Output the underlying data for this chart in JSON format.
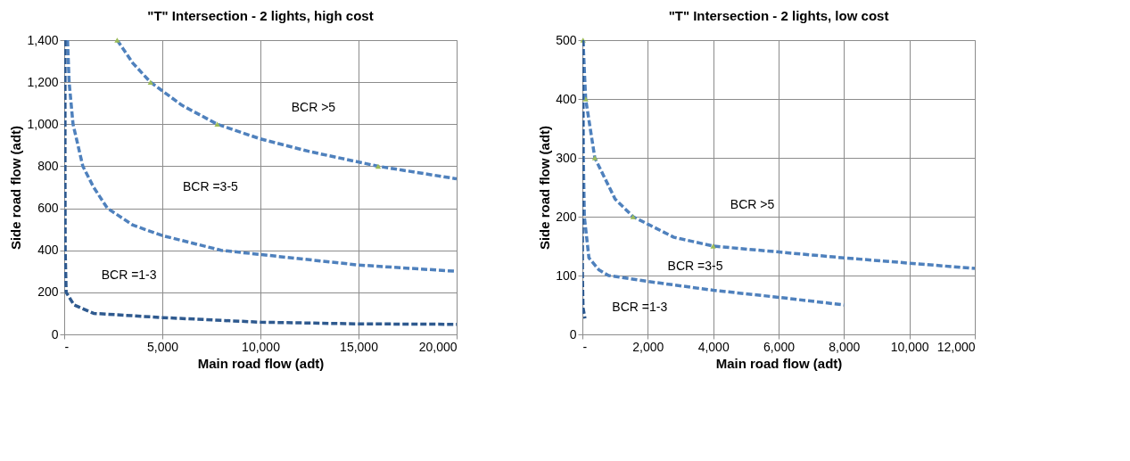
{
  "chart_data": [
    {
      "type": "line",
      "title": "\"T\" Intersection - 2 lights, high cost",
      "xlabel": "Main road flow (adt)",
      "ylabel": "Side road flow (adt)",
      "xlim": [
        0,
        20000
      ],
      "ylim": [
        0,
        1400
      ],
      "xticks": [
        {
          "value": 0,
          "label": "-"
        },
        {
          "value": 5000,
          "label": "5,000"
        },
        {
          "value": 10000,
          "label": "10,000"
        },
        {
          "value": 15000,
          "label": "15,000"
        },
        {
          "value": 20000,
          "label": "20,000"
        }
      ],
      "yticks": [
        0,
        200,
        400,
        600,
        800,
        {
          "value": 1000,
          "label": "1,000"
        },
        {
          "value": 1200,
          "label": "1,200"
        },
        {
          "value": 1400,
          "label": "1,400"
        }
      ],
      "grid": true,
      "line_style": "dashed",
      "series": [
        {
          "color": "#4f81bd",
          "marker": "none",
          "x": [
            2700,
            3500,
            4400,
            6000,
            7800,
            10000,
            12500,
            16000,
            20000
          ],
          "values": [
            1400,
            1290,
            1200,
            1090,
            1000,
            930,
            870,
            800,
            740
          ]
        },
        {
          "type": "scatter",
          "color": "#9bbb59",
          "marker": "triangle",
          "x": [
            2700,
            4400,
            7800,
            16000
          ],
          "values": [
            1400,
            1200,
            1000,
            800
          ]
        },
        {
          "color": "#4f81bd",
          "marker": "none",
          "x": [
            170,
            250,
            450,
            950,
            1500,
            2200,
            3500,
            5000,
            8000,
            10000,
            15000,
            20000
          ],
          "values": [
            1400,
            1200,
            1000,
            800,
            700,
            600,
            520,
            470,
            400,
            380,
            330,
            300
          ]
        },
        {
          "color": "#2f5a8f",
          "marker": "none",
          "x": [
            40,
            40,
            50,
            100,
            500,
            1500,
            5000,
            10000,
            15000,
            20000
          ],
          "values": [
            1400,
            800,
            400,
            200,
            140,
            100,
            80,
            58,
            50,
            48
          ]
        }
      ],
      "annotations": [
        "BCR >5",
        "BCR =3-5",
        "BCR =1-3"
      ]
    },
    {
      "type": "line",
      "title": "\"T\" Intersection - 2 lights, low cost",
      "xlabel": "Main road flow (adt)",
      "ylabel": "Side road flow (adt)",
      "xlim": [
        0,
        12000
      ],
      "ylim": [
        0,
        500
      ],
      "xticks": [
        {
          "value": 0,
          "label": "-"
        },
        {
          "value": 2000,
          "label": "2,000"
        },
        {
          "value": 4000,
          "label": "4,000"
        },
        {
          "value": 6000,
          "label": "6,000"
        },
        {
          "value": 8000,
          "label": "8,000"
        },
        {
          "value": 10000,
          "label": "10,000"
        },
        {
          "value": 12000,
          "label": "12,000"
        }
      ],
      "yticks": [
        0,
        100,
        200,
        300,
        400,
        500
      ],
      "grid": true,
      "line_style": "dashed",
      "series": [
        {
          "color": "#4f81bd",
          "marker": "none",
          "x": [
            20,
            100,
            380,
            1000,
            1550,
            2800,
            4000,
            6000,
            8000,
            10000,
            12000
          ],
          "values": [
            500,
            400,
            300,
            230,
            200,
            165,
            150,
            140,
            130,
            121,
            112
          ]
        },
        {
          "type": "scatter",
          "color": "#9bbb59",
          "marker": "triangle",
          "x": [
            20,
            100,
            380,
            1550,
            4000
          ],
          "values": [
            500,
            400,
            300,
            200,
            150
          ]
        },
        {
          "color": "#4f81bd",
          "marker": "none",
          "x": [
            20,
            30,
            60,
            200,
            500,
            800,
            2000,
            4000,
            6000,
            8000
          ],
          "values": [
            500,
            300,
            200,
            130,
            110,
            100,
            90,
            75,
            63,
            50
          ]
        },
        {
          "color": "#2f5a8f",
          "marker": "none",
          "x": [
            0,
            0,
            20,
            80
          ],
          "values": [
            500,
            100,
            45,
            27
          ]
        }
      ],
      "annotations": [
        "BCR >5",
        "BCR =3-5",
        "BCR =1-3"
      ]
    }
  ]
}
